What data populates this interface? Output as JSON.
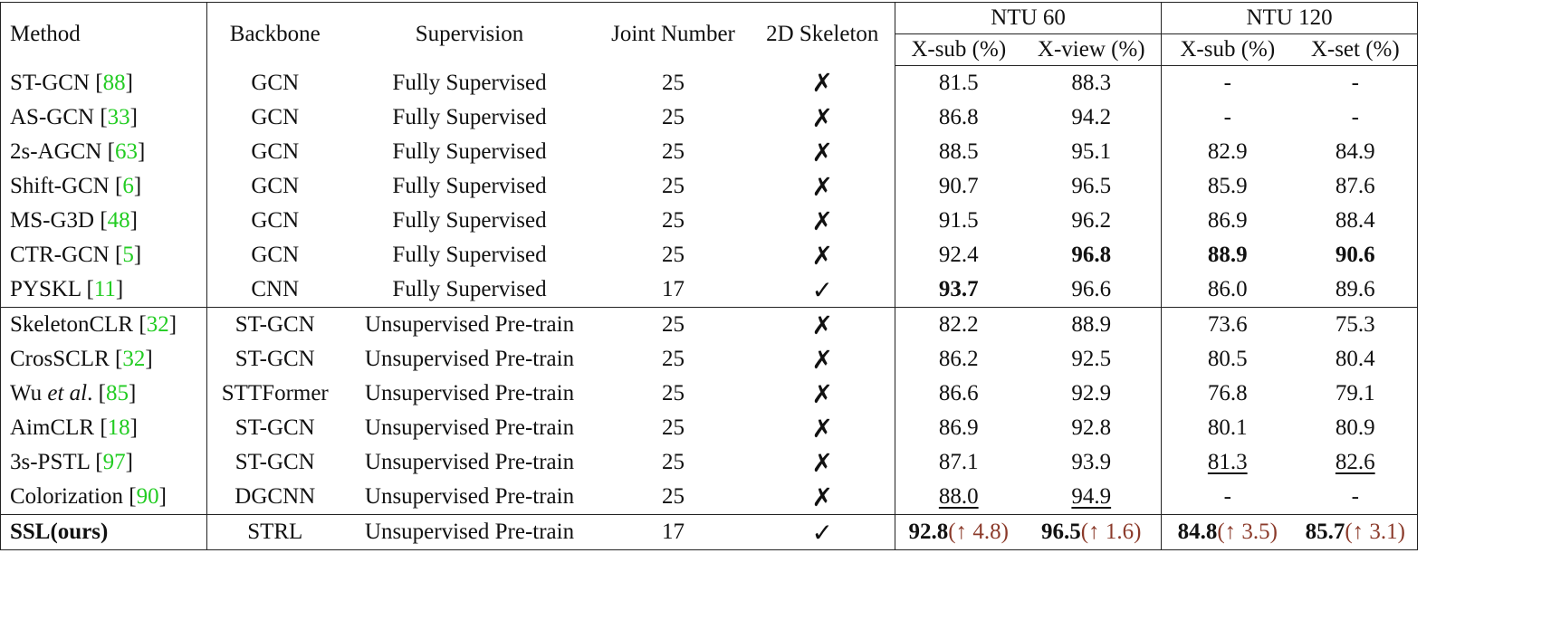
{
  "table": {
    "ref_open": "[",
    "ref_close": "]",
    "header": {
      "method": "Method",
      "backbone": "Backbone",
      "supervision": "Supervision",
      "joints": "Joint Number",
      "skeleton": "2D Skeleton",
      "groups": [
        "NTU 60",
        "NTU 120"
      ],
      "metrics": [
        "X-sub (%)",
        "X-view (%)",
        "X-sub (%)",
        "X-set (%)"
      ]
    },
    "rows": [
      {
        "method": "ST-GCN",
        "ref": "88",
        "backbone": "GCN",
        "supervision": "Fully Supervised",
        "joints": "25",
        "skeleton": "✗",
        "scores": [
          "81.5",
          "88.3",
          "-",
          "-"
        ]
      },
      {
        "method": "AS-GCN",
        "ref": "33",
        "backbone": "GCN",
        "supervision": "Fully Supervised",
        "joints": "25",
        "skeleton": "✗",
        "scores": [
          "86.8",
          "94.2",
          "-",
          "-"
        ]
      },
      {
        "method": "2s-AGCN",
        "ref": "63",
        "backbone": "GCN",
        "supervision": "Fully Supervised",
        "joints": "25",
        "skeleton": "✗",
        "scores": [
          "88.5",
          "95.1",
          "82.9",
          "84.9"
        ]
      },
      {
        "method": "Shift-GCN",
        "ref": "6",
        "backbone": "GCN",
        "supervision": "Fully Supervised",
        "joints": "25",
        "skeleton": "✗",
        "scores": [
          "90.7",
          "96.5",
          "85.9",
          "87.6"
        ]
      },
      {
        "method": "MS-G3D",
        "ref": "48",
        "backbone": "GCN",
        "supervision": "Fully Supervised",
        "joints": "25",
        "skeleton": "✗",
        "scores": [
          "91.5",
          "96.2",
          "86.9",
          "88.4"
        ]
      },
      {
        "method": "CTR-GCN",
        "ref": "5",
        "backbone": "GCN",
        "supervision": "Fully Supervised",
        "joints": "25",
        "skeleton": "✗",
        "scores": [
          "92.4",
          "96.8",
          "88.9",
          "90.6"
        ]
      },
      {
        "method": "PYSKL",
        "ref": "11",
        "backbone": "CNN",
        "supervision": "Fully Supervised",
        "joints": "17",
        "skeleton": "✓",
        "scores": [
          "93.7",
          "96.6",
          "86.0",
          "89.6"
        ]
      },
      {
        "method": "SkeletonCLR",
        "ref": "32",
        "backbone": "ST-GCN",
        "supervision": "Unsupervised Pre-train",
        "joints": "25",
        "skeleton": "✗",
        "scores": [
          "82.2",
          "88.9",
          "73.6",
          "75.3"
        ]
      },
      {
        "method": "CrosSCLR",
        "ref": "32",
        "backbone": "ST-GCN",
        "supervision": "Unsupervised Pre-train",
        "joints": "25",
        "skeleton": "✗",
        "scores": [
          "86.2",
          "92.5",
          "80.5",
          "80.4"
        ]
      },
      {
        "method": "Wu",
        "method_em": "et al",
        "method_tail": ".",
        "ref": "85",
        "backbone": "STTFormer",
        "supervision": "Unsupervised Pre-train",
        "joints": "25",
        "skeleton": "✗",
        "scores": [
          "86.6",
          "92.9",
          "76.8",
          "79.1"
        ]
      },
      {
        "method": "AimCLR",
        "ref": "18",
        "backbone": "ST-GCN",
        "supervision": "Unsupervised Pre-train",
        "joints": "25",
        "skeleton": "✗",
        "scores": [
          "86.9",
          "92.8",
          "80.1",
          "80.9"
        ]
      },
      {
        "method": "3s-PSTL",
        "ref": "97",
        "backbone": "ST-GCN",
        "supervision": "Unsupervised Pre-train",
        "joints": "25",
        "skeleton": "✗",
        "scores": [
          "87.1",
          "93.9",
          "81.3",
          "82.6"
        ]
      },
      {
        "method": "Colorization",
        "ref": "90",
        "backbone": "DGCNN",
        "supervision": "Unsupervised Pre-train",
        "joints": "25",
        "skeleton": "✗",
        "scores": [
          "88.0",
          "94.9",
          "-",
          "-"
        ]
      },
      {
        "method": "SSL(ours)",
        "backbone": "STRL",
        "supervision": "Unsupervised Pre-train",
        "joints": "17",
        "skeleton": "✓",
        "scores": [
          "92.8",
          "96.5",
          "84.8",
          "85.7"
        ],
        "gains": [
          "(↑ 4.8)",
          "(↑ 1.6)",
          "(↑ 3.5)",
          "(↑ 3.1)"
        ]
      }
    ]
  }
}
